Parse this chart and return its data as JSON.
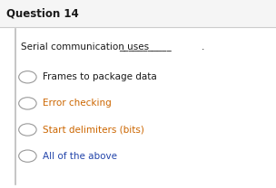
{
  "title": "Question 14",
  "question_prefix": "Serial communication uses ",
  "question_underline": "___________",
  "question_suffix": ".",
  "options": [
    "Frames to package data",
    "Error checking",
    "Start delimiters (bits)",
    "All of the above"
  ],
  "option_colors": [
    "#1a1a1a",
    "#cc6600",
    "#cc6600",
    "#2244aa"
  ],
  "bg_color": "#ffffff",
  "box_bg": "#ffffff",
  "box_border": "#bbbbbb",
  "title_color": "#1a1a1a",
  "question_color": "#1a1a1a",
  "title_fontsize": 8.5,
  "question_fontsize": 7.5,
  "option_fontsize": 7.5,
  "title_bar_color": "#f5f5f5",
  "divider_color": "#cccccc"
}
